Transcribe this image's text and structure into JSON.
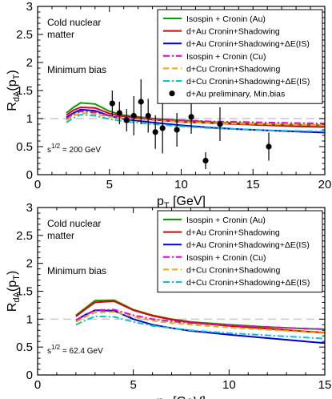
{
  "chart_data": [
    {
      "type": "line",
      "xlabel_main": "p",
      "xlabel_sub": "T",
      "xlabel_unit": " [GeV]",
      "ylabel_main": "R",
      "ylabel_sub": "dA",
      "ylabel_arg_open": "(p",
      "ylabel_arg_sub": "T",
      "ylabel_arg_close": ")",
      "xlim": [
        0,
        20
      ],
      "ylim": [
        0,
        3
      ],
      "xticks": [
        0,
        5,
        10,
        15,
        20
      ],
      "yticks": [
        0,
        0.5,
        1,
        1.5,
        2,
        2.5,
        3
      ],
      "reference_line": 1,
      "annotations": {
        "matter_line1": "Cold nuclear",
        "matter_line2": "matter",
        "bias": "Minimum bias",
        "energy_prefix": "s",
        "energy_sup": "1/2",
        "energy_value": " = 200 GeV"
      },
      "legend_position": "top-right",
      "series": [
        {
          "name": "Isospin + Cronin (Au)",
          "color": "#00a000",
          "dash": "solid",
          "x": [
            2,
            2.5,
            3,
            4,
            5,
            6,
            8,
            10,
            12,
            14,
            16,
            18,
            20
          ],
          "y": [
            1.1,
            1.2,
            1.28,
            1.26,
            1.13,
            1.06,
            1.0,
            0.97,
            0.94,
            0.92,
            0.9,
            0.89,
            0.88
          ]
        },
        {
          "name": "d+Au Cronin+Shadowing",
          "color": "#e00000",
          "dash": "solid",
          "x": [
            2,
            2.5,
            3,
            4,
            5,
            6,
            8,
            10,
            12,
            14,
            16,
            18,
            20
          ],
          "y": [
            1.06,
            1.15,
            1.2,
            1.19,
            1.09,
            1.04,
            0.98,
            0.94,
            0.92,
            0.9,
            0.88,
            0.86,
            0.85
          ]
        },
        {
          "name": "d+Au Cronin+Shadowing+ΔE(IS)",
          "color": "#0000e0",
          "dash": "solid",
          "x": [
            2,
            2.5,
            3,
            4,
            5,
            6,
            8,
            10,
            12,
            14,
            16,
            18,
            20
          ],
          "y": [
            1.02,
            1.1,
            1.16,
            1.14,
            1.05,
            0.99,
            0.93,
            0.88,
            0.84,
            0.81,
            0.79,
            0.77,
            0.75
          ]
        },
        {
          "name": "Isospin + Cronin (Cu)",
          "color": "#e000e0",
          "dash": "dashdot",
          "x": [
            2,
            2.5,
            3,
            4,
            5,
            6,
            8,
            10,
            12,
            14,
            16,
            18,
            20
          ],
          "y": [
            1.0,
            1.08,
            1.13,
            1.11,
            1.05,
            1.02,
            0.99,
            0.97,
            0.95,
            0.94,
            0.93,
            0.92,
            0.91
          ]
        },
        {
          "name": "d+Cu Cronin+Shadowing",
          "color": "#ffa500",
          "dash": "dashed",
          "x": [
            2,
            2.5,
            3,
            4,
            5,
            6,
            8,
            10,
            12,
            14,
            16,
            18,
            20
          ],
          "y": [
            0.97,
            1.05,
            1.1,
            1.08,
            1.03,
            1.0,
            0.97,
            0.94,
            0.92,
            0.91,
            0.9,
            0.89,
            0.88
          ]
        },
        {
          "name": "d+Cu Cronin+Shadowing+ΔE(IS)",
          "color": "#00c8c8",
          "dash": "dashdot",
          "x": [
            2,
            2.5,
            3,
            4,
            5,
            6,
            8,
            10,
            12,
            14,
            16,
            18,
            20
          ],
          "y": [
            0.93,
            1.01,
            1.07,
            1.05,
            0.99,
            0.95,
            0.9,
            0.86,
            0.83,
            0.81,
            0.79,
            0.78,
            0.77
          ]
        }
      ],
      "points": {
        "name": "d+Au preliminary, Min.bias",
        "color": "#000000",
        "x": [
          5.2,
          5.7,
          6.2,
          6.7,
          7.2,
          7.7,
          8.2,
          8.7,
          9.7,
          10.7,
          11.7,
          12.7,
          16.1
        ],
        "y": [
          1.27,
          1.1,
          0.97,
          1.05,
          1.3,
          1.05,
          0.76,
          0.83,
          0.8,
          1.03,
          0.25,
          0.9,
          0.5
        ],
        "yerr": [
          0.23,
          0.2,
          0.2,
          0.35,
          0.4,
          0.3,
          0.3,
          0.45,
          0.3,
          0.3,
          0.15,
          0.3,
          0.25
        ]
      }
    },
    {
      "type": "line",
      "xlabel_main": "p",
      "xlabel_sub": "T",
      "xlabel_unit": " [GeV]",
      "ylabel_main": "R",
      "ylabel_sub": "dA",
      "ylabel_arg_open": "(p",
      "ylabel_arg_sub": "T",
      "ylabel_arg_close": ")",
      "xlim": [
        0,
        15
      ],
      "ylim": [
        0,
        3
      ],
      "xticks": [
        0,
        5,
        10,
        15
      ],
      "yticks": [
        0,
        0.5,
        1,
        1.5,
        2,
        2.5,
        3
      ],
      "reference_line": 1,
      "annotations": {
        "matter_line1": "Cold nuclear",
        "matter_line2": "matter",
        "bias": "Minimum bias",
        "energy_prefix": "s",
        "energy_sup": "1/2",
        "energy_value": " = 62.4 GeV"
      },
      "legend_position": "top-right",
      "series": [
        {
          "name": "Isospin + Cronin (Au)",
          "color": "#00a000",
          "dash": "solid",
          "x": [
            2,
            2.5,
            3,
            4,
            5,
            6,
            7,
            8,
            10,
            12,
            14,
            15
          ],
          "y": [
            1.07,
            1.2,
            1.33,
            1.34,
            1.17,
            1.07,
            1.0,
            0.95,
            0.9,
            0.86,
            0.83,
            0.82
          ]
        },
        {
          "name": "d+Au Cronin+Shadowing",
          "color": "#e00000",
          "dash": "solid",
          "x": [
            2,
            2.5,
            3,
            4,
            5,
            6,
            7,
            8,
            10,
            12,
            14,
            15
          ],
          "y": [
            1.05,
            1.18,
            1.3,
            1.32,
            1.16,
            1.06,
            0.99,
            0.94,
            0.88,
            0.83,
            0.78,
            0.76
          ]
        },
        {
          "name": "d+Au Cronin+Shadowing+ΔE(IS)",
          "color": "#0000e0",
          "dash": "solid",
          "x": [
            2,
            2.5,
            3,
            4,
            5,
            6,
            7,
            8,
            10,
            12,
            14,
            15
          ],
          "y": [
            0.98,
            1.08,
            1.16,
            1.15,
            1.0,
            0.9,
            0.84,
            0.79,
            0.72,
            0.66,
            0.6,
            0.57
          ]
        },
        {
          "name": "Isospin + Cronin (Cu)",
          "color": "#e000e0",
          "dash": "dashdot",
          "x": [
            2,
            2.5,
            3,
            4,
            5,
            6,
            7,
            8,
            10,
            12,
            14,
            15
          ],
          "y": [
            0.98,
            1.07,
            1.16,
            1.17,
            1.07,
            1.0,
            0.96,
            0.93,
            0.89,
            0.86,
            0.83,
            0.82
          ]
        },
        {
          "name": "d+Cu Cronin+Shadowing",
          "color": "#ffa500",
          "dash": "dashed",
          "x": [
            2,
            2.5,
            3,
            4,
            5,
            6,
            7,
            8,
            10,
            12,
            14,
            15
          ],
          "y": [
            0.95,
            1.04,
            1.12,
            1.13,
            1.04,
            0.97,
            0.93,
            0.9,
            0.85,
            0.81,
            0.77,
            0.75
          ]
        },
        {
          "name": "d+Cu Cronin+Shadowing+ΔE(IS)",
          "color": "#00c8c8",
          "dash": "dashdot",
          "x": [
            2,
            2.5,
            3,
            4,
            5,
            6,
            7,
            8,
            10,
            12,
            14,
            15
          ],
          "y": [
            0.9,
            0.98,
            1.05,
            1.04,
            0.95,
            0.88,
            0.84,
            0.8,
            0.75,
            0.71,
            0.67,
            0.65
          ]
        }
      ]
    }
  ]
}
